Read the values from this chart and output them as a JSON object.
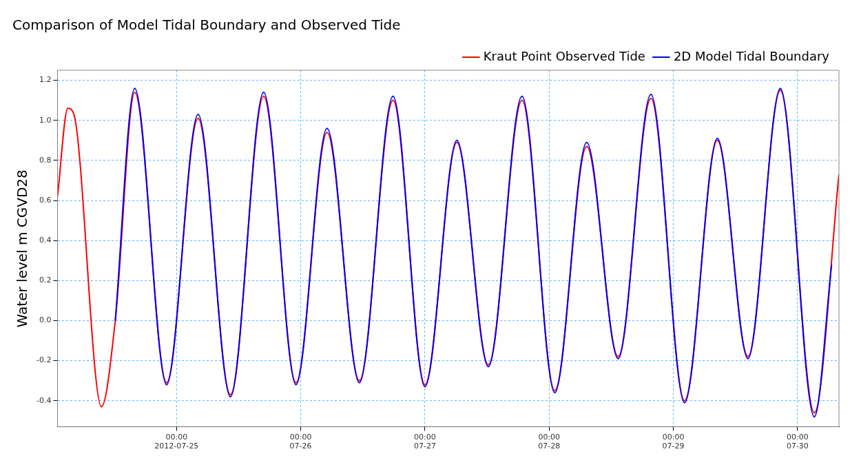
{
  "chart_data": {
    "type": "line",
    "title": "Comparison of Model Tidal Boundary and Observed Tide",
    "ylabel": "Water level m CGVD28",
    "xlim": [
      "2012-07-24T01:00",
      "2012-07-30T08:00"
    ],
    "xticks": [
      {
        "value": "2012-07-25T00:00",
        "label": "00:00\n2012-07-25"
      },
      {
        "value": "2012-07-26T00:00",
        "label": "00:00\n07-26"
      },
      {
        "value": "2012-07-27T00:00",
        "label": "00:00\n07-27"
      },
      {
        "value": "2012-07-28T00:00",
        "label": "00:00\n07-28"
      },
      {
        "value": "2012-07-29T00:00",
        "label": "00:00\n07-29"
      },
      {
        "value": "2012-07-30T00:00",
        "label": "00:00\n07-30"
      }
    ],
    "ylim": [
      -0.53,
      1.25
    ],
    "yticks": [
      {
        "value": -0.4,
        "label": "-0.4"
      },
      {
        "value": -0.2,
        "label": "-0.2"
      },
      {
        "value": 0,
        "label": "0.0"
      },
      {
        "value": 0.2,
        "label": "0.2"
      },
      {
        "value": 0.4,
        "label": "0.4"
      },
      {
        "value": 0.6,
        "label": "0.6"
      },
      {
        "value": 0.8,
        "label": "0.8"
      },
      {
        "value": 1,
        "label": "1.0"
      },
      {
        "value": 1.2,
        "label": "1.2"
      }
    ],
    "grid": true,
    "legend": "top right",
    "line_style": "solid",
    "marker": "none",
    "series": [
      {
        "name": "Kraut Point Observed Tide",
        "color": "#ff0000",
        "x": [
          "2012-07-24T01:00",
          "2012-07-24T03:00",
          "2012-07-24T04:10",
          "2012-07-24T09:30",
          "2012-07-24T12:10",
          "2012-07-24T15:55",
          "2012-07-24T22:05",
          "2012-07-25T04:10",
          "2012-07-25T10:25",
          "2012-07-25T16:50",
          "2012-07-25T23:05",
          "2012-07-26T05:05",
          "2012-07-26T11:20",
          "2012-07-26T17:50",
          "2012-07-27T00:00",
          "2012-07-27T06:10",
          "2012-07-27T12:15",
          "2012-07-27T18:45",
          "2012-07-28T01:05",
          "2012-07-28T07:15",
          "2012-07-28T13:20",
          "2012-07-28T19:40",
          "2012-07-29T02:10",
          "2012-07-29T08:30",
          "2012-07-29T14:25",
          "2012-07-29T20:40",
          "2012-07-30T03:15",
          "2012-07-30T08:00"
        ],
        "values": [
          0.62,
          1.06,
          1.03,
          -0.43,
          0.0,
          1.14,
          -0.31,
          1.01,
          -0.37,
          1.12,
          -0.31,
          0.94,
          -0.3,
          1.1,
          -0.32,
          0.89,
          -0.22,
          1.1,
          -0.35,
          0.87,
          -0.18,
          1.11,
          -0.4,
          0.9,
          -0.18,
          1.15,
          -0.46,
          0.73
        ]
      },
      {
        "name": "2D Model Tidal Boundary",
        "color": "#0000ff",
        "x": [
          "2012-07-24T12:10",
          "2012-07-24T15:55",
          "2012-07-24T22:05",
          "2012-07-25T04:10",
          "2012-07-25T10:25",
          "2012-07-25T16:50",
          "2012-07-25T23:05",
          "2012-07-26T05:05",
          "2012-07-26T11:20",
          "2012-07-26T17:50",
          "2012-07-27T00:00",
          "2012-07-27T06:10",
          "2012-07-27T12:15",
          "2012-07-27T18:45",
          "2012-07-28T01:05",
          "2012-07-28T07:15",
          "2012-07-28T13:20",
          "2012-07-28T19:40",
          "2012-07-29T02:10",
          "2012-07-29T08:30",
          "2012-07-29T14:25",
          "2012-07-29T20:40",
          "2012-07-30T03:15",
          "2012-07-30T06:35"
        ],
        "values": [
          0.0,
          1.16,
          -0.32,
          1.03,
          -0.38,
          1.14,
          -0.32,
          0.96,
          -0.31,
          1.12,
          -0.33,
          0.9,
          -0.23,
          1.12,
          -0.36,
          0.89,
          -0.19,
          1.13,
          -0.41,
          0.91,
          -0.19,
          1.16,
          -0.48,
          0.28
        ]
      }
    ]
  }
}
